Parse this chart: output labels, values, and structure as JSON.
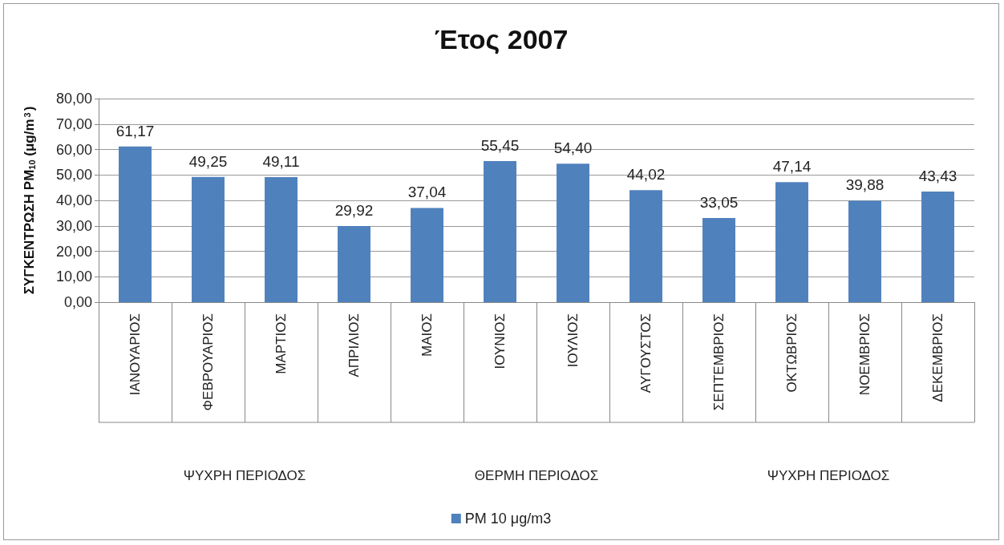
{
  "chart_data": {
    "type": "bar",
    "title": "Έτος 2007",
    "ylabel": "ΣΥΓΚΕΝΤΡΩΣΗ PM$_{10}$ (μg/m$^{3}$)",
    "categories": [
      "ΙΑΝΟΥΑΡΙΟΣ",
      "ΦΕΒΡΟΥΑΡΙΟΣ",
      "ΜΑΡΤΙΟΣ",
      "ΑΠΡΙΛΙΟΣ",
      "ΜΑΙΟΣ",
      "ΙΟΥΝΙΟΣ",
      "ΙΟΥΛΙΟΣ",
      "ΑΥΓΟΥΣΤΟΣ",
      "ΣΕΠΤΕΜΒΡΙΟΣ",
      "ΟΚΤΩΒΡΙΟΣ",
      "ΝΟΕΜΒΡΙΟΣ",
      "ΔΕΚΕΜΒΡΙΟΣ"
    ],
    "series": [
      {
        "name": "PM 10 μg/m3",
        "color": "#4f81bd",
        "values": [
          61.17,
          49.25,
          49.11,
          29.92,
          37.04,
          55.45,
          54.4,
          44.02,
          33.05,
          47.14,
          39.88,
          43.43
        ],
        "value_labels": [
          "61,17",
          "49,25",
          "49,11",
          "29,92",
          "37,04",
          "55,45",
          "54,40",
          "44,02",
          "33,05",
          "47,14",
          "39,88",
          "43,43"
        ]
      }
    ],
    "ylim": [
      0,
      80
    ],
    "yticks": [
      {
        "value": 0,
        "label": "0,00"
      },
      {
        "value": 10,
        "label": "10,00"
      },
      {
        "value": 20,
        "label": "20,00"
      },
      {
        "value": 30,
        "label": "30,00"
      },
      {
        "value": 40,
        "label": "40,00"
      },
      {
        "value": 50,
        "label": "50,00"
      },
      {
        "value": 60,
        "label": "60,00"
      },
      {
        "value": 70,
        "label": "70,00"
      },
      {
        "value": 80,
        "label": "80,00"
      }
    ],
    "grid": "y",
    "legend": "bottom",
    "annotations": [
      "ΨΥΧΡΗ ΠΕΡΙΟΔΟΣ",
      "ΘΕΡΜΗ ΠΕΡΙΟΔΟΣ",
      "ΨΥΧΡΗ ΠΕΡΙΟΔΟΣ"
    ]
  }
}
